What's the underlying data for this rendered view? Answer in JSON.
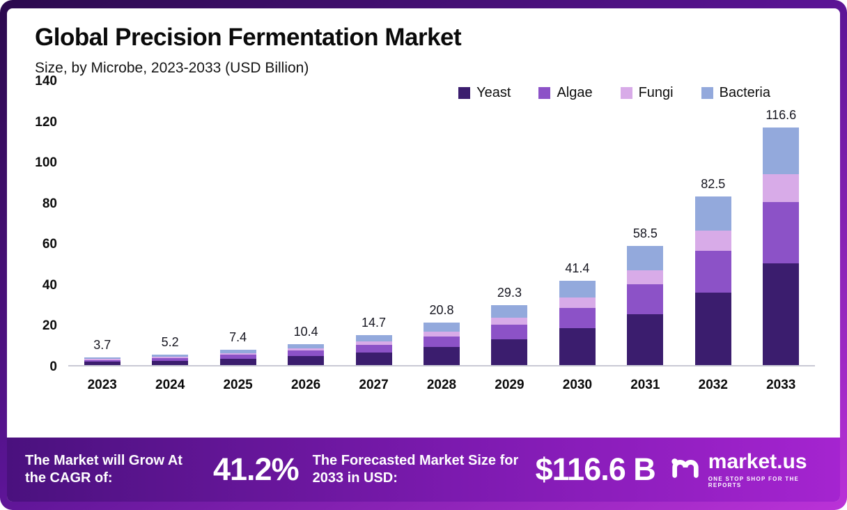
{
  "header": {
    "title": "Global Precision Fermentation Market",
    "subtitle": "Size, by Microbe, 2023-2033 (USD Billion)"
  },
  "chart_data": {
    "type": "bar",
    "stacked": true,
    "title": "Global Precision Fermentation Market",
    "subtitle": "Size, by Microbe, 2023-2033 (USD Billion)",
    "xlabel": "",
    "ylabel": "USD Billion",
    "ylim": [
      0,
      140
    ],
    "yticks": [
      0,
      20,
      40,
      60,
      80,
      100,
      120,
      140
    ],
    "grid": false,
    "legend_position": "top",
    "categories": [
      "2023",
      "2024",
      "2025",
      "2026",
      "2027",
      "2028",
      "2029",
      "2030",
      "2031",
      "2032",
      "2033"
    ],
    "totals": [
      3.7,
      5.2,
      7.4,
      10.4,
      14.7,
      20.8,
      29.3,
      41.4,
      58.5,
      82.5,
      116.6
    ],
    "series": [
      {
        "name": "Yeast",
        "color": "#3b1d6e",
        "values": [
          1.6,
          2.2,
          3.2,
          4.5,
          6.3,
          9.0,
          12.5,
          18.0,
          25.0,
          35.5,
          50.0
        ]
      },
      {
        "name": "Algae",
        "color": "#8c52c7",
        "values": [
          0.9,
          1.3,
          1.8,
          2.6,
          3.7,
          5.0,
          7.3,
          10.0,
          14.5,
          20.5,
          30.0
        ]
      },
      {
        "name": "Fungi",
        "color": "#d8abe8",
        "values": [
          0.45,
          0.6,
          0.9,
          1.2,
          1.7,
          2.5,
          3.5,
          5.0,
          7.0,
          10.0,
          13.5
        ]
      },
      {
        "name": "Bacteria",
        "color": "#93a9dc",
        "values": [
          0.75,
          1.1,
          1.5,
          2.1,
          3.0,
          4.3,
          6.0,
          8.4,
          12.0,
          16.5,
          23.1
        ]
      }
    ]
  },
  "footer": {
    "cagr_label": "The Market will Grow At the CAGR of:",
    "cagr_value": "41.2%",
    "forecast_label": "The Forecasted Market Size for 2033 in USD:",
    "forecast_value": "$116.6 B",
    "brand": "market.us",
    "brand_tagline": "ONE STOP SHOP FOR THE REPORTS"
  }
}
